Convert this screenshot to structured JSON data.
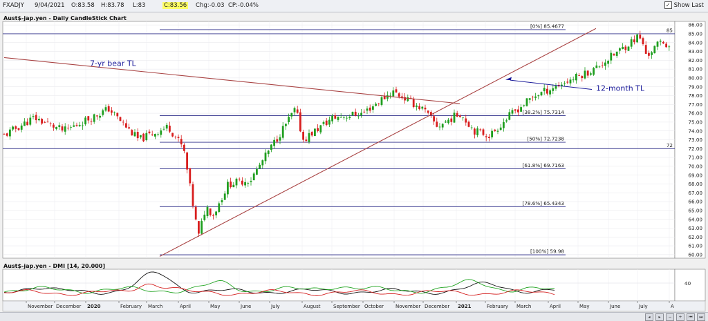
{
  "header": {
    "symbol": "FXADJY",
    "date": "9/04/2021",
    "open": "O:83.58",
    "high": "H:83.78",
    "low": "L:83",
    "close": "C:83.56",
    "change": "Chg:-0.03",
    "change_pct": "CP:-0.04%",
    "show_last_label": "Show Last",
    "show_last_checked": "✓"
  },
  "nav_icons": [
    "◂",
    "▸",
    "−",
    "+",
    "⏮",
    "⏭"
  ],
  "chart_data": [
    {
      "type": "candlestick",
      "title": "Aust$-jap.yen - Daily CandleStick Chart",
      "x_range": [
        "2020-10-15",
        "2021-04-30"
      ],
      "ylim": [
        59.6,
        86.4
      ],
      "y_ticks": [
        "60.00",
        "61.00",
        "62.00",
        "63.00",
        "64.00",
        "65.00",
        "66.00",
        "67.00",
        "68.00",
        "69.00",
        "70.00",
        "71.00",
        "72.00",
        "73.00",
        "74.00",
        "75.00",
        "76.00",
        "77.00",
        "78.00",
        "79.00",
        "80.00",
        "81.00",
        "82.00",
        "83.00",
        "84.00",
        "85.00",
        "86.00"
      ],
      "x_tick_labels": [
        "November",
        "December",
        "2020",
        "February",
        "March",
        "April",
        "May",
        "June",
        "July",
        "August",
        "September",
        "October",
        "November",
        "December",
        "2021",
        "February",
        "March",
        "April",
        "May",
        "June",
        "July",
        "A"
      ],
      "approx_close_path": [
        [
          0,
          73.5
        ],
        [
          8,
          75.5
        ],
        [
          16,
          74.0
        ],
        [
          28,
          76.5
        ],
        [
          36,
          73.0
        ],
        [
          44,
          74.5
        ],
        [
          48,
          72.0
        ],
        [
          52,
          62.0
        ],
        [
          54,
          65.5
        ],
        [
          56,
          64.5
        ],
        [
          60,
          68.0
        ],
        [
          66,
          68.5
        ],
        [
          72,
          72.5
        ],
        [
          78,
          76.5
        ],
        [
          80,
          73.0
        ],
        [
          88,
          75.5
        ],
        [
          96,
          76.0
        ],
        [
          104,
          78.5
        ],
        [
          112,
          76.5
        ],
        [
          116,
          74.5
        ],
        [
          122,
          76.0
        ],
        [
          126,
          74.0
        ],
        [
          130,
          73.5
        ],
        [
          136,
          76.0
        ],
        [
          142,
          78.0
        ],
        [
          150,
          79.5
        ],
        [
          158,
          81.0
        ],
        [
          166,
          83.5
        ],
        [
          170,
          84.8
        ],
        [
          172,
          82.5
        ],
        [
          176,
          84.2
        ],
        [
          178,
          83.6
        ]
      ],
      "candle_colors": {
        "up": "#1f9e1f",
        "down": "#d81e1e"
      },
      "fib_levels": [
        {
          "label": "[0%] 85.4677",
          "value": 85.4677
        },
        {
          "label": "[38.2%] 75.7314",
          "value": 75.7314
        },
        {
          "label": "[50%] 72.7238",
          "value": 72.7238
        },
        {
          "label": "[61.8%] 69.7163",
          "value": 69.7163
        },
        {
          "label": "[78.6%] 65.4343",
          "value": 65.4343
        },
        {
          "label": "[100%] 59.98",
          "value": 59.98
        }
      ],
      "horizontal_lines": [
        {
          "label": "85",
          "value": 85
        },
        {
          "label": "72",
          "value": 72
        }
      ],
      "trendlines": [
        {
          "label": "7-yr bear TL"
        },
        {
          "label": "12-month TL"
        }
      ],
      "fib_color": "#2e2e8a",
      "trendline_color": "#a94444",
      "label_color": "#1a1a9a"
    },
    {
      "type": "line",
      "title": "Aust$-jap.yen - DMI [14, 20.000]",
      "y_ticks": [
        "40"
      ],
      "series_colors": [
        "#111111",
        "#1fa31f",
        "#d41e1e"
      ]
    }
  ]
}
